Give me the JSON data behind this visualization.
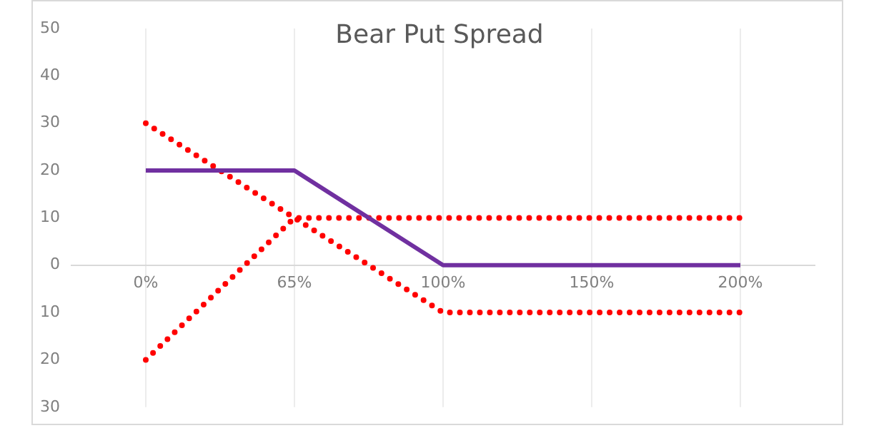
{
  "chart_data": {
    "type": "line",
    "title": "Bear Put Spread",
    "categories": [
      "0%",
      "65%",
      "100%",
      "150%",
      "200%"
    ],
    "series": [
      {
        "color": "#7030a0",
        "values": [
          20,
          20,
          0,
          0,
          0
        ],
        "line_style": "solid"
      },
      {
        "color": "#ff0000",
        "values": [
          30,
          10,
          -10,
          -10,
          -10
        ],
        "line_style": "dotted"
      },
      {
        "color": "#ff0000",
        "values": [
          -20,
          10,
          10,
          10,
          10
        ],
        "line_style": "dotted"
      }
    ],
    "ylim": [
      -30,
      50
    ],
    "yticks": [
      50,
      40,
      30,
      20,
      10,
      0,
      {
        "value": -10,
        "label": "10"
      },
      {
        "value": -20,
        "label": "20"
      },
      {
        "value": -30,
        "label": "30"
      }
    ],
    "grid": "x",
    "legend": false,
    "marker": "none"
  }
}
